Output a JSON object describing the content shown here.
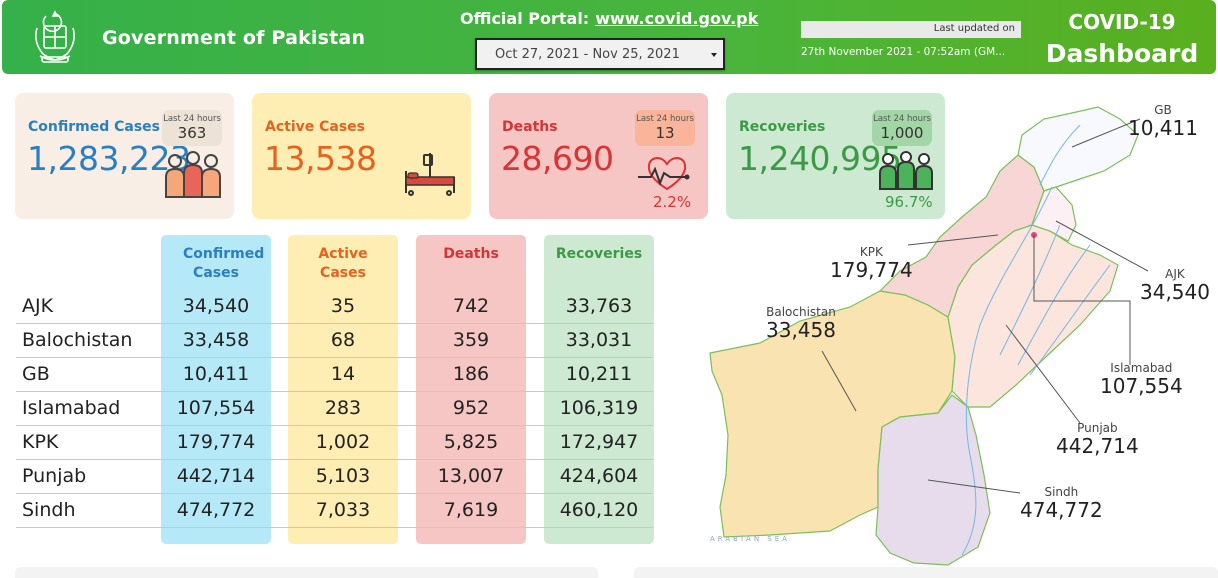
{
  "header": {
    "gov_title": "Government of Pakistan",
    "portal_label": "Official Portal:",
    "portal_link": "www.covid.gov.pk",
    "date_range": "Oct 27, 2021 - Nov 25, 2021",
    "last_updated_label": "Last updated on",
    "last_updated_value": "27th November 2021 - 07:52am (GM...",
    "dash_title_1": "COVID-19",
    "dash_title_2": "Dashboard"
  },
  "cards": {
    "confirmed": {
      "label": "Confirmed Cases",
      "value": "1,283,223",
      "badge_label": "Last 24 hours",
      "badge_value": "363",
      "color": "#2a7fc1"
    },
    "active": {
      "label": "Active Cases",
      "value": "13,538",
      "color": "#e5621f"
    },
    "deaths": {
      "label": "Deaths",
      "value": "28,690",
      "badge_label": "Last 24 hours",
      "badge_value": "13",
      "pct": "2.2%",
      "color": "#d73436"
    },
    "recoveries": {
      "label": "Recoveries",
      "value": "1,240,995",
      "badge_label": "Last 24 hours",
      "badge_value": "1,000",
      "pct": "96.7%",
      "color": "#3c9a45"
    }
  },
  "table": {
    "headers": [
      "Confirmed Cases",
      "Active Cases",
      "Deaths",
      "Recoveries"
    ],
    "rows": [
      {
        "region": "AJK",
        "confirmed": "34,540",
        "active": "35",
        "deaths": "742",
        "recoveries": "33,763"
      },
      {
        "region": "Balochistan",
        "confirmed": "33,458",
        "active": "68",
        "deaths": "359",
        "recoveries": "33,031"
      },
      {
        "region": "GB",
        "confirmed": "10,411",
        "active": "14",
        "deaths": "186",
        "recoveries": "10,211"
      },
      {
        "region": "Islamabad",
        "confirmed": "107,554",
        "active": "283",
        "deaths": "952",
        "recoveries": "106,319"
      },
      {
        "region": "KPK",
        "confirmed": "179,774",
        "active": "1,002",
        "deaths": "5,825",
        "recoveries": "172,947"
      },
      {
        "region": "Punjab",
        "confirmed": "442,714",
        "active": "5,103",
        "deaths": "13,007",
        "recoveries": "424,604"
      },
      {
        "region": "Sindh",
        "confirmed": "474,772",
        "active": "7,033",
        "deaths": "7,619",
        "recoveries": "460,120"
      }
    ]
  },
  "map": {
    "gb": {
      "name": "GB",
      "value": "10,411"
    },
    "kpk": {
      "name": "KPK",
      "value": "179,774"
    },
    "ajk": {
      "name": "AJK",
      "value": "34,540"
    },
    "balochistan": {
      "name": "Balochistan",
      "value": "33,458"
    },
    "islamabad": {
      "name": "Islamabad",
      "value": "107,554"
    },
    "punjab": {
      "name": "Punjab",
      "value": "442,714"
    },
    "sindh": {
      "name": "Sindh",
      "value": "474,772"
    },
    "sea_label": "ARABIAN SEA"
  }
}
